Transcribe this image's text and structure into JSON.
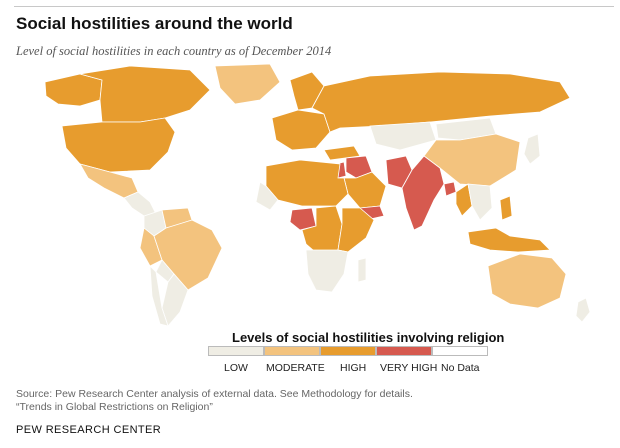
{
  "header": {
    "title": "Social hostilities around the world",
    "subtitle": "Level of social hostilities in each country as of December 2014"
  },
  "legend": {
    "title": "Levels of social hostilities involving religion",
    "items": [
      {
        "label": "LOW",
        "color": "#efede4"
      },
      {
        "label": "MODERATE",
        "color": "#f3c37e"
      },
      {
        "label": "HIGH",
        "color": "#e79c2e"
      },
      {
        "label": "VERY HIGH",
        "color": "#d65a4f"
      },
      {
        "label": "No Data",
        "color": "#ffffff"
      }
    ]
  },
  "map": {
    "regions": [
      {
        "name": "Canada",
        "level": "HIGH"
      },
      {
        "name": "Alaska",
        "level": "HIGH"
      },
      {
        "name": "Greenland",
        "level": "MODERATE"
      },
      {
        "name": "United States",
        "level": "HIGH"
      },
      {
        "name": "Mexico",
        "level": "MODERATE"
      },
      {
        "name": "Central America",
        "level": "LOW"
      },
      {
        "name": "Colombia",
        "level": "LOW"
      },
      {
        "name": "Venezuela",
        "level": "MODERATE"
      },
      {
        "name": "Brazil",
        "level": "MODERATE"
      },
      {
        "name": "Peru",
        "level": "MODERATE"
      },
      {
        "name": "Bolivia",
        "level": "LOW"
      },
      {
        "name": "Argentina",
        "level": "LOW"
      },
      {
        "name": "Chile",
        "level": "LOW"
      },
      {
        "name": "Scandinavia",
        "level": "HIGH"
      },
      {
        "name": "Western Europe",
        "level": "HIGH"
      },
      {
        "name": "Russia",
        "level": "HIGH"
      },
      {
        "name": "Kazakhstan",
        "level": "LOW"
      },
      {
        "name": "Mongolia",
        "level": "LOW"
      },
      {
        "name": "China",
        "level": "MODERATE"
      },
      {
        "name": "Turkey",
        "level": "HIGH"
      },
      {
        "name": "Israel",
        "level": "VERY HIGH"
      },
      {
        "name": "Iraq",
        "level": "VERY HIGH"
      },
      {
        "name": "Saudi Arabia",
        "level": "HIGH"
      },
      {
        "name": "Yemen",
        "level": "VERY HIGH"
      },
      {
        "name": "Pakistan",
        "level": "VERY HIGH"
      },
      {
        "name": "India",
        "level": "VERY HIGH"
      },
      {
        "name": "Bangladesh",
        "level": "VERY HIGH"
      },
      {
        "name": "Myanmar",
        "level": "HIGH"
      },
      {
        "name": "Southeast Asia",
        "level": "LOW"
      },
      {
        "name": "Indonesia",
        "level": "HIGH"
      },
      {
        "name": "Philippines",
        "level": "HIGH"
      },
      {
        "name": "Japan",
        "level": "LOW"
      },
      {
        "name": "North Africa",
        "level": "HIGH"
      },
      {
        "name": "Western Sahara",
        "level": "LOW"
      },
      {
        "name": "Nigeria",
        "level": "VERY HIGH"
      },
      {
        "name": "Central Africa",
        "level": "HIGH"
      },
      {
        "name": "East Africa",
        "level": "HIGH"
      },
      {
        "name": "Southern Africa",
        "level": "LOW"
      },
      {
        "name": "Madagascar",
        "level": "LOW"
      },
      {
        "name": "Australia",
        "level": "MODERATE"
      },
      {
        "name": "New Zealand",
        "level": "LOW"
      }
    ]
  },
  "source": {
    "line1": "Source: Pew Research Center analysis of external data. See Methodology for details.",
    "line2": "“Trends in Global Restrictions on Religion”"
  },
  "footer": {
    "brand": "PEW RESEARCH CENTER"
  }
}
